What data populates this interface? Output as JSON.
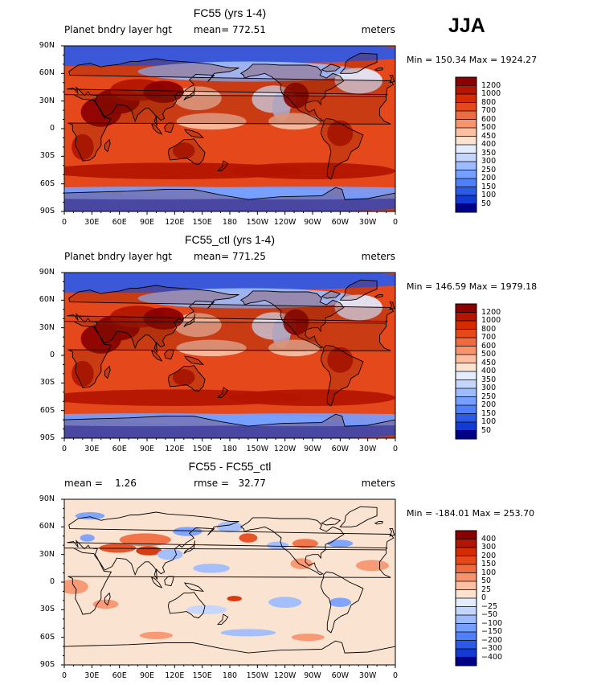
{
  "header": {
    "season": "JJA"
  },
  "lat_labels": [
    "90N",
    "60N",
    "30N",
    "0",
    "30S",
    "60S",
    "90S"
  ],
  "lon_labels": [
    "0",
    "30E",
    "60E",
    "90E",
    "120E",
    "150E",
    "180",
    "150W",
    "120W",
    "90W",
    "60W",
    "30W",
    "0"
  ],
  "panels": [
    {
      "title": "FC55 (yrs 1-4)",
      "left_text": "Planet bndry layer hgt",
      "center_text": "mean= 772.51",
      "right_text": "meters",
      "minmax": "Min = 150.34 Max = 1924.27",
      "colorbar": {
        "levels": [
          "1200",
          "1000",
          "800",
          "700",
          "600",
          "500",
          "450",
          "400",
          "350",
          "300",
          "250",
          "200",
          "150",
          "100",
          "50"
        ],
        "colors": [
          "#8b0000",
          "#b31500",
          "#d52b00",
          "#e5481a",
          "#f06a3f",
          "#f7946e",
          "#fbc0a3",
          "#fbe3d2",
          "#e4ecff",
          "#c2d6ff",
          "#9cbcff",
          "#76a0ff",
          "#4f80fc",
          "#2b5ae8",
          "#133ad2",
          "#000086"
        ]
      }
    },
    {
      "title": "FC55_ctl (yrs 1-4)",
      "left_text": "Planet bndry layer hgt",
      "center_text": "mean= 771.25",
      "right_text": "meters",
      "minmax": "Min = 146.59 Max = 1979.18",
      "colorbar": {
        "levels": [
          "1200",
          "1000",
          "800",
          "700",
          "600",
          "500",
          "450",
          "400",
          "350",
          "300",
          "250",
          "200",
          "150",
          "100",
          "50"
        ],
        "colors": [
          "#8b0000",
          "#b31500",
          "#d52b00",
          "#e5481a",
          "#f06a3f",
          "#f7946e",
          "#fbc0a3",
          "#fbe3d2",
          "#e4ecff",
          "#c2d6ff",
          "#9cbcff",
          "#76a0ff",
          "#4f80fc",
          "#2b5ae8",
          "#133ad2",
          "#000086"
        ]
      }
    },
    {
      "title": "FC55 - FC55_ctl",
      "left_text": "mean =    1.26",
      "center_text": "rmse =   32.77",
      "right_text": "meters",
      "minmax": "Min = -184.01 Max = 253.70",
      "colorbar": {
        "levels": [
          "400",
          "300",
          "200",
          "150",
          "100",
          "50",
          "25",
          "0",
          "−25",
          "−50",
          "−100",
          "−150",
          "−200",
          "−300",
          "−400"
        ],
        "colors": [
          "#8b0000",
          "#b31500",
          "#d52b00",
          "#e5481a",
          "#f06a3f",
          "#f7946e",
          "#fbc0a3",
          "#fbe3d2",
          "#e4ecff",
          "#c2d6ff",
          "#9cbcff",
          "#76a0ff",
          "#4f80fc",
          "#2b5ae8",
          "#133ad2",
          "#000086"
        ]
      }
    }
  ]
}
